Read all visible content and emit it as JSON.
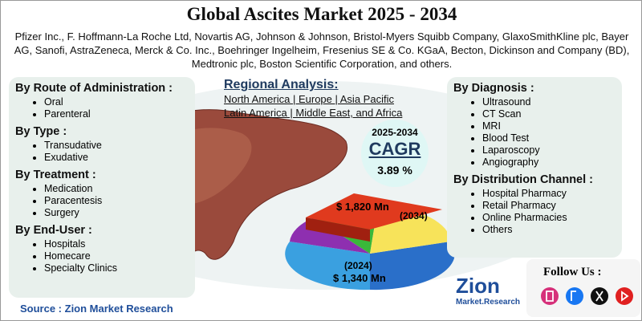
{
  "header": {
    "title": "Global Ascites Market 2025 - 2034",
    "companies": "Pfizer Inc., F. Hoffmann-La Roche Ltd, Novartis AG, Johnson & Johnson, Bristol-Myers Squibb Company, GlaxoSmithKline plc, Bayer AG, Sanofi, AstraZeneca, Merck & Co. Inc., Boehringer Ingelheim, Fresenius SE & Co. KGaA, Becton, Dickinson and Company (BD), Medtronic plc, Boston Scientific Corporation, and others."
  },
  "left_segments": [
    {
      "heading": "By Route of Administration :",
      "items": [
        "Oral",
        "Parenteral"
      ]
    },
    {
      "heading": "By Type :",
      "items": [
        "Transudative",
        "Exudative"
      ]
    },
    {
      "heading": "By Treatment :",
      "items": [
        "Medication",
        "Paracentesis",
        "Surgery"
      ]
    },
    {
      "heading": "By End-User :",
      "items": [
        "Hospitals",
        "Homecare",
        "Specialty Clinics"
      ]
    }
  ],
  "right_segments": [
    {
      "heading": "By Diagnosis :",
      "items": [
        "Ultrasound",
        "CT Scan",
        "MRI",
        "Blood Test",
        "Laparoscopy",
        "Angiography"
      ]
    },
    {
      "heading": "By Distribution Channel :",
      "items": [
        "Hospital Pharmacy",
        "Retail Pharmacy",
        "Online Pharmacies",
        "Others"
      ]
    }
  ],
  "regional": {
    "title": "Regional Analysis:",
    "lines": [
      "North America | Europe | Asia Pacific",
      "Latin America | Middle East, and Africa"
    ]
  },
  "cagr": {
    "period": "2025-2034",
    "label": "CAGR",
    "value": "3.89 %"
  },
  "market": {
    "value_2034": "$ 1,820 Mn",
    "year_2034": "(2034)",
    "year_2024": "(2024)",
    "value_2024": "$ 1,340 Mn"
  },
  "footer": {
    "source": "Source : Zion Market Research",
    "follow": "Follow Us :",
    "logo": "Zion",
    "logo_sub": "Market.Research"
  }
}
